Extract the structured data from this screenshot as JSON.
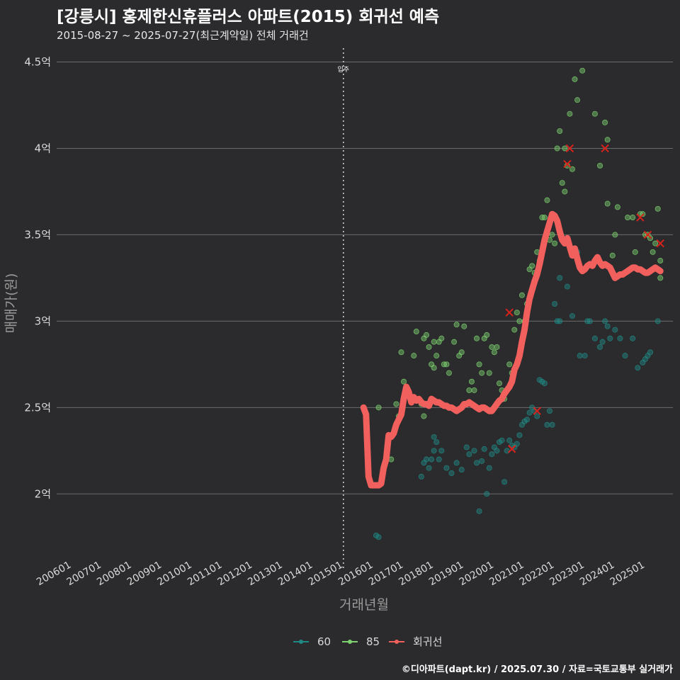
{
  "title": "[강릉시] 홍제한신휴플러스 아파트(2015) 회귀선 예측",
  "subtitle": "2015-08-27 ~ 2025-07-27(최근계약일) 전체 거래건",
  "footer": "©디아파트(dapt.kr) / 2025.07.30 / 자료=국토교통부 실거래가",
  "colors": {
    "background": "#2b2b2d",
    "grid": "#6b6b6b",
    "axis_text": "#d9d9d9",
    "title_gray": "#9a9a9a",
    "s60": "#1f8a85",
    "s85": "#7dd36f",
    "regression": "#f2605e",
    "cross": "#d9221c",
    "annotation": "#ffffff"
  },
  "chart_data": {
    "type": "scatter",
    "xlabel": "거래년월",
    "ylabel": "매매가(원)",
    "x_unit": "month",
    "xlim": [
      "2005-07",
      "2025-12"
    ],
    "ylim": [
      1.62,
      4.58
    ],
    "y_ticks": [
      2,
      2.5,
      3,
      3.5,
      4,
      4.5
    ],
    "y_tick_labels": [
      "2억",
      "2.5억",
      "3억",
      "3.5억",
      "4억",
      "4.5억"
    ],
    "x_ticks": [
      "2006-01",
      "2007-01",
      "2008-01",
      "2009-01",
      "2010-01",
      "2011-01",
      "2012-01",
      "2013-01",
      "2014-01",
      "2015-01",
      "2016-01",
      "2017-01",
      "2018-01",
      "2019-01",
      "2020-01",
      "2021-01",
      "2022-01",
      "2023-01",
      "2024-01",
      "2025-01"
    ],
    "x_tick_labels": [
      "200601",
      "200701",
      "200801",
      "200901",
      "201001",
      "201101",
      "201201",
      "201301",
      "201401",
      "201501",
      "201601",
      "201701",
      "201801",
      "201901",
      "202001",
      "202101",
      "202201",
      "202301",
      "202401",
      "202501"
    ],
    "annotation": {
      "x": "2015-01",
      "label": "입주"
    },
    "legend": {
      "position": "bottom",
      "items": [
        "60",
        "85",
        "회귀선"
      ]
    },
    "series": [
      {
        "name": "60",
        "points": [
          [
            "2016-02",
            1.76
          ],
          [
            "2016-03",
            1.75
          ],
          [
            "2017-08",
            2.1
          ],
          [
            "2017-09",
            2.18
          ],
          [
            "2017-10",
            2.2
          ],
          [
            "2017-11",
            2.15
          ],
          [
            "2017-12",
            2.2
          ],
          [
            "2018-01",
            2.25
          ],
          [
            "2018-01",
            2.33
          ],
          [
            "2018-02",
            2.3
          ],
          [
            "2018-03",
            2.2
          ],
          [
            "2018-04",
            2.25
          ],
          [
            "2018-06",
            2.15
          ],
          [
            "2018-08",
            2.12
          ],
          [
            "2018-10",
            2.18
          ],
          [
            "2018-12",
            2.14
          ],
          [
            "2019-02",
            2.27
          ],
          [
            "2019-03",
            2.23
          ],
          [
            "2019-05",
            2.25
          ],
          [
            "2019-06",
            2.18
          ],
          [
            "2019-07",
            1.9
          ],
          [
            "2019-08",
            2.19
          ],
          [
            "2019-09",
            2.26
          ],
          [
            "2019-10",
            2.0
          ],
          [
            "2019-11",
            2.15
          ],
          [
            "2019-12",
            2.23
          ],
          [
            "2020-01",
            2.27
          ],
          [
            "2020-02",
            2.25
          ],
          [
            "2020-03",
            2.3
          ],
          [
            "2020-04",
            2.31
          ],
          [
            "2020-05",
            2.07
          ],
          [
            "2020-06",
            2.25
          ],
          [
            "2020-07",
            2.31
          ],
          [
            "2020-08",
            2.28
          ],
          [
            "2020-09",
            2.27
          ],
          [
            "2020-10",
            2.29
          ],
          [
            "2020-11",
            2.34
          ],
          [
            "2020-12",
            2.4
          ],
          [
            "2021-01",
            2.42
          ],
          [
            "2021-02",
            2.43
          ],
          [
            "2021-03",
            2.47
          ],
          [
            "2021-04",
            2.5
          ],
          [
            "2021-05",
            2.48
          ],
          [
            "2021-06",
            2.45
          ],
          [
            "2021-07",
            2.66
          ],
          [
            "2021-08",
            2.65
          ],
          [
            "2021-09",
            2.64
          ],
          [
            "2021-10",
            2.4
          ],
          [
            "2021-11",
            2.48
          ],
          [
            "2021-12",
            2.4
          ],
          [
            "2022-01",
            3.1
          ],
          [
            "2022-02",
            3.0
          ],
          [
            "2022-03",
            3.0
          ],
          [
            "2022-03",
            3.25
          ],
          [
            "2022-06",
            3.2
          ],
          [
            "2022-08",
            3.03
          ],
          [
            "2022-10",
            3.4
          ],
          [
            "2022-11",
            2.8
          ],
          [
            "2023-01",
            2.8
          ],
          [
            "2023-02",
            3.0
          ],
          [
            "2023-03",
            3.0
          ],
          [
            "2023-05",
            2.9
          ],
          [
            "2023-07",
            2.85
          ],
          [
            "2023-08",
            2.88
          ],
          [
            "2023-09",
            3.0
          ],
          [
            "2023-10",
            2.97
          ],
          [
            "2023-11",
            2.9
          ],
          [
            "2024-01",
            2.95
          ],
          [
            "2024-03",
            2.9
          ],
          [
            "2024-05",
            2.8
          ],
          [
            "2024-08",
            2.9
          ],
          [
            "2024-10",
            2.73
          ],
          [
            "2024-12",
            2.76
          ],
          [
            "2025-01",
            2.78
          ],
          [
            "2025-02",
            2.8
          ],
          [
            "2025-03",
            2.82
          ],
          [
            "2025-06",
            3.0
          ]
        ]
      },
      {
        "name": "85",
        "points": [
          [
            "2016-03",
            2.5
          ],
          [
            "2016-08",
            2.2
          ],
          [
            "2016-10",
            2.52
          ],
          [
            "2016-11",
            2.45
          ],
          [
            "2016-12",
            2.82
          ],
          [
            "2017-01",
            2.65
          ],
          [
            "2017-02",
            2.6
          ],
          [
            "2017-03",
            2.58
          ],
          [
            "2017-05",
            2.8
          ],
          [
            "2017-06",
            2.94
          ],
          [
            "2017-08",
            2.52
          ],
          [
            "2017-09",
            2.45
          ],
          [
            "2017-09",
            2.9
          ],
          [
            "2017-10",
            2.92
          ],
          [
            "2017-11",
            2.85
          ],
          [
            "2017-12",
            2.75
          ],
          [
            "2018-01",
            2.73
          ],
          [
            "2018-01",
            2.88
          ],
          [
            "2018-02",
            2.8
          ],
          [
            "2018-03",
            2.88
          ],
          [
            "2018-04",
            2.9
          ],
          [
            "2018-05",
            2.75
          ],
          [
            "2018-06",
            2.75
          ],
          [
            "2018-07",
            2.7
          ],
          [
            "2018-09",
            2.88
          ],
          [
            "2018-10",
            2.98
          ],
          [
            "2018-11",
            2.8
          ],
          [
            "2018-12",
            2.82
          ],
          [
            "2019-01",
            2.97
          ],
          [
            "2019-03",
            2.6
          ],
          [
            "2019-04",
            2.65
          ],
          [
            "2019-05",
            2.6
          ],
          [
            "2019-06",
            2.9
          ],
          [
            "2019-07",
            2.75
          ],
          [
            "2019-08",
            2.7
          ],
          [
            "2019-09",
            2.9
          ],
          [
            "2019-10",
            2.92
          ],
          [
            "2019-11",
            2.7
          ],
          [
            "2019-12",
            2.85
          ],
          [
            "2020-01",
            2.82
          ],
          [
            "2020-02",
            2.85
          ],
          [
            "2020-03",
            2.64
          ],
          [
            "2020-04",
            2.6
          ],
          [
            "2020-05",
            2.55
          ],
          [
            "2020-07",
            2.75
          ],
          [
            "2020-08",
            2.7
          ],
          [
            "2020-09",
            2.95
          ],
          [
            "2020-10",
            3.05
          ],
          [
            "2020-11",
            3.0
          ],
          [
            "2020-12",
            3.15
          ],
          [
            "2021-01",
            3.0
          ],
          [
            "2021-02",
            3.1
          ],
          [
            "2021-03",
            3.3
          ],
          [
            "2021-04",
            3.32
          ],
          [
            "2021-05",
            3.28
          ],
          [
            "2021-06",
            3.4
          ],
          [
            "2021-07",
            3.35
          ],
          [
            "2021-08",
            3.6
          ],
          [
            "2021-09",
            3.6
          ],
          [
            "2021-10",
            3.7
          ],
          [
            "2021-11",
            3.47
          ],
          [
            "2021-12",
            3.5
          ],
          [
            "2022-01",
            3.45
          ],
          [
            "2022-02",
            4.0
          ],
          [
            "2022-03",
            4.1
          ],
          [
            "2022-04",
            3.8
          ],
          [
            "2022-05",
            3.75
          ],
          [
            "2022-05",
            4.0
          ],
          [
            "2022-06",
            3.9
          ],
          [
            "2022-07",
            4.2
          ],
          [
            "2022-08",
            3.88
          ],
          [
            "2022-09",
            4.4
          ],
          [
            "2022-10",
            4.28
          ],
          [
            "2022-12",
            4.45
          ],
          [
            "2023-05",
            4.2
          ],
          [
            "2023-07",
            3.9
          ],
          [
            "2023-09",
            4.15
          ],
          [
            "2023-10",
            3.68
          ],
          [
            "2023-10",
            4.05
          ],
          [
            "2023-12",
            3.38
          ],
          [
            "2024-01",
            3.5
          ],
          [
            "2024-02",
            3.66
          ],
          [
            "2024-06",
            3.6
          ],
          [
            "2024-08",
            3.6
          ],
          [
            "2024-09",
            3.4
          ],
          [
            "2024-10",
            3.3
          ],
          [
            "2024-11",
            3.62
          ],
          [
            "2024-12",
            3.62
          ],
          [
            "2025-01",
            3.5
          ],
          [
            "2025-02",
            3.5
          ],
          [
            "2025-03",
            3.48
          ],
          [
            "2025-04",
            3.4
          ],
          [
            "2025-05",
            3.45
          ],
          [
            "2025-06",
            3.65
          ],
          [
            "2025-07",
            3.25
          ],
          [
            "2025-07",
            3.35
          ]
        ]
      }
    ],
    "highlight_points": [
      [
        "2020-07",
        3.05
      ],
      [
        "2020-08",
        2.26
      ],
      [
        "2021-06",
        2.48
      ],
      [
        "2022-06",
        3.91
      ],
      [
        "2022-07",
        4.0
      ],
      [
        "2023-09",
        4.0
      ],
      [
        "2024-11",
        3.6
      ],
      [
        "2025-02",
        3.5
      ],
      [
        "2025-07",
        3.45
      ]
    ],
    "regression": [
      [
        "2015-09",
        2.5
      ],
      [
        "2015-10",
        2.46
      ],
      [
        "2015-11",
        2.1
      ],
      [
        "2015-12",
        2.05
      ],
      [
        "2016-01",
        2.05
      ],
      [
        "2016-02",
        2.05
      ],
      [
        "2016-03",
        2.05
      ],
      [
        "2016-04",
        2.06
      ],
      [
        "2016-05",
        2.15
      ],
      [
        "2016-06",
        2.2
      ],
      [
        "2016-07",
        2.34
      ],
      [
        "2016-08",
        2.33
      ],
      [
        "2016-09",
        2.35
      ],
      [
        "2016-10",
        2.4
      ],
      [
        "2016-11",
        2.43
      ],
      [
        "2016-12",
        2.46
      ],
      [
        "2017-01",
        2.55
      ],
      [
        "2017-02",
        2.62
      ],
      [
        "2017-03",
        2.59
      ],
      [
        "2017-04",
        2.53
      ],
      [
        "2017-05",
        2.56
      ],
      [
        "2017-06",
        2.54
      ],
      [
        "2017-07",
        2.55
      ],
      [
        "2017-08",
        2.53
      ],
      [
        "2017-09",
        2.52
      ],
      [
        "2017-10",
        2.52
      ],
      [
        "2017-11",
        2.51
      ],
      [
        "2017-12",
        2.55
      ],
      [
        "2018-01",
        2.54
      ],
      [
        "2018-02",
        2.53
      ],
      [
        "2018-03",
        2.53
      ],
      [
        "2018-04",
        2.52
      ],
      [
        "2018-05",
        2.51
      ],
      [
        "2018-06",
        2.51
      ],
      [
        "2018-07",
        2.5
      ],
      [
        "2018-08",
        2.5
      ],
      [
        "2018-09",
        2.49
      ],
      [
        "2018-10",
        2.48
      ],
      [
        "2018-11",
        2.49
      ],
      [
        "2018-12",
        2.5
      ],
      [
        "2019-01",
        2.52
      ],
      [
        "2019-02",
        2.52
      ],
      [
        "2019-03",
        2.53
      ],
      [
        "2019-04",
        2.52
      ],
      [
        "2019-05",
        2.51
      ],
      [
        "2019-06",
        2.5
      ],
      [
        "2019-07",
        2.49
      ],
      [
        "2019-08",
        2.5
      ],
      [
        "2019-09",
        2.5
      ],
      [
        "2019-10",
        2.49
      ],
      [
        "2019-11",
        2.48
      ],
      [
        "2019-12",
        2.48
      ],
      [
        "2020-01",
        2.5
      ],
      [
        "2020-02",
        2.52
      ],
      [
        "2020-03",
        2.54
      ],
      [
        "2020-04",
        2.55
      ],
      [
        "2020-05",
        2.58
      ],
      [
        "2020-06",
        2.6
      ],
      [
        "2020-07",
        2.62
      ],
      [
        "2020-08",
        2.65
      ],
      [
        "2020-09",
        2.72
      ],
      [
        "2020-10",
        2.75
      ],
      [
        "2020-11",
        2.8
      ],
      [
        "2020-12",
        2.88
      ],
      [
        "2021-01",
        2.95
      ],
      [
        "2021-02",
        3.05
      ],
      [
        "2021-03",
        3.13
      ],
      [
        "2021-04",
        3.18
      ],
      [
        "2021-05",
        3.23
      ],
      [
        "2021-06",
        3.27
      ],
      [
        "2021-07",
        3.33
      ],
      [
        "2021-08",
        3.4
      ],
      [
        "2021-09",
        3.47
      ],
      [
        "2021-10",
        3.52
      ],
      [
        "2021-11",
        3.57
      ],
      [
        "2021-12",
        3.62
      ],
      [
        "2022-01",
        3.61
      ],
      [
        "2022-02",
        3.58
      ],
      [
        "2022-03",
        3.52
      ],
      [
        "2022-04",
        3.47
      ],
      [
        "2022-05",
        3.45
      ],
      [
        "2022-06",
        3.48
      ],
      [
        "2022-07",
        3.43
      ],
      [
        "2022-08",
        3.38
      ],
      [
        "2022-09",
        3.42
      ],
      [
        "2022-10",
        3.36
      ],
      [
        "2022-11",
        3.31
      ],
      [
        "2022-12",
        3.29
      ],
      [
        "2023-01",
        3.3
      ],
      [
        "2023-02",
        3.32
      ],
      [
        "2023-03",
        3.33
      ],
      [
        "2023-04",
        3.32
      ],
      [
        "2023-05",
        3.35
      ],
      [
        "2023-06",
        3.37
      ],
      [
        "2023-07",
        3.34
      ],
      [
        "2023-08",
        3.32
      ],
      [
        "2023-09",
        3.33
      ],
      [
        "2023-10",
        3.32
      ],
      [
        "2023-11",
        3.31
      ],
      [
        "2023-12",
        3.28
      ],
      [
        "2024-01",
        3.25
      ],
      [
        "2024-02",
        3.26
      ],
      [
        "2024-03",
        3.27
      ],
      [
        "2024-04",
        3.27
      ],
      [
        "2024-05",
        3.28
      ],
      [
        "2024-06",
        3.29
      ],
      [
        "2024-07",
        3.3
      ],
      [
        "2024-08",
        3.31
      ],
      [
        "2024-09",
        3.31
      ],
      [
        "2024-10",
        3.3
      ],
      [
        "2024-11",
        3.3
      ],
      [
        "2024-12",
        3.29
      ],
      [
        "2025-01",
        3.28
      ],
      [
        "2025-02",
        3.28
      ],
      [
        "2025-03",
        3.29
      ],
      [
        "2025-04",
        3.3
      ],
      [
        "2025-05",
        3.31
      ],
      [
        "2025-06",
        3.3
      ],
      [
        "2025-07",
        3.29
      ]
    ]
  }
}
